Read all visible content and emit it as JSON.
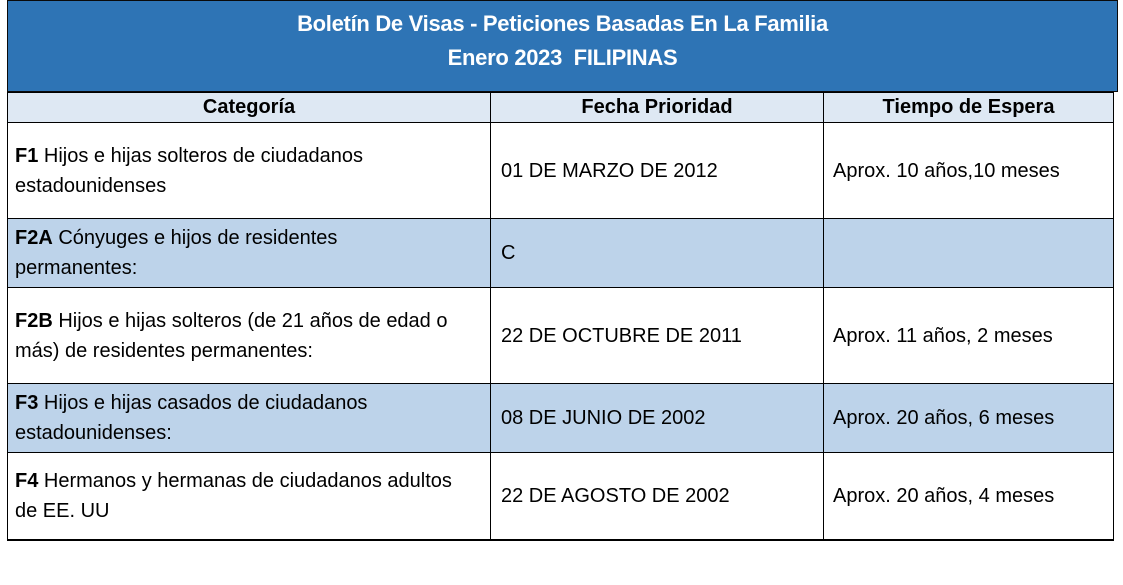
{
  "banner": {
    "title_line1": "Boletín De Visas - Peticiones Basadas En La Familia",
    "title_line2": "Enero 2023  FILIPINAS",
    "bg_color": "#2E74B5",
    "text_color": "#FFFFFF"
  },
  "table": {
    "columns": [
      "Categoría",
      "Fecha Prioridad",
      "Tiempo de Espera"
    ],
    "rows": [
      {
        "code": "F1",
        "category": "Hijos e hijas solteros de ciudadanos estadounidenses",
        "priority_date": "01 DE MARZO DE 2012",
        "wait_time": "Aprox. 10 años,10 meses",
        "highlighted": false
      },
      {
        "code": "F2A",
        "category": "Cónyuges e hijos de residentes permanentes:",
        "priority_date": "C",
        "wait_time": "",
        "highlighted": true
      },
      {
        "code": "F2B",
        "category": "Hijos e hijas solteros (de 21 años de edad o más) de residentes permanentes:",
        "priority_date": "22 DE OCTUBRE DE 2011",
        "wait_time": "Aprox. 11 años, 2 meses",
        "highlighted": false
      },
      {
        "code": "F3",
        "category": "Hijos e hijas casados de ciudadanos estadounidenses:",
        "priority_date": "08 DE JUNIO DE 2002",
        "wait_time": "Aprox. 20 años, 6 meses",
        "highlighted": true
      },
      {
        "code": "F4",
        "category": "Hermanos y hermanas de ciudadanos adultos de EE. UU",
        "priority_date": "22 DE AGOSTO DE 2002",
        "wait_time": "Aprox. 20 años, 4 meses",
        "highlighted": false
      }
    ],
    "colors": {
      "header_bg": "#DEE8F3",
      "row_highlight_bg": "#BDD3EA",
      "row_bg": "#FFFFFF",
      "border": "#000000"
    }
  }
}
